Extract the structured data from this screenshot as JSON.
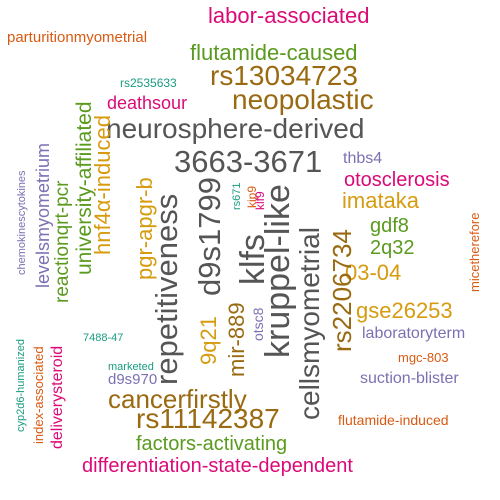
{
  "words": {
    "parturitionmyometrial": "parturitionmyometrial",
    "labor_associated": "labor-associated",
    "flutamide_caused": "flutamide-caused",
    "rs13034723": "rs13034723",
    "rs2535633": "rs2535633",
    "neopolastic": "neopolastic",
    "deathsour": "deathsour",
    "neurosphere_derived": "neurosphere-derived",
    "w3663_3671": "3663-3671",
    "thbs4": "thbs4",
    "otosclerosis": "otosclerosis",
    "imataka": "imataka",
    "gdf8": "gdf8",
    "w2q32": "2q32",
    "w03_04": "03-04",
    "gse26253": "gse26253",
    "w7488_47": "7488-47",
    "laboratoryterm": "laboratoryterm",
    "mgc_803": "mgc-803",
    "marketed": "marketed",
    "suction_blister": "suction-blister",
    "d9s970": "d9s970",
    "cancerfirstly": "cancerfirstly",
    "rs11142387": "rs11142387",
    "flutamide_induced": "flutamide-induced",
    "factors_activating": "factors-activating",
    "differentiation_state_dependent": "differentiation-state-dependent",
    "chemokinescytokines": "chemokinescytokines",
    "levelsmyometrium": "levelsmyometrium",
    "reactionqrt_pcr": "reactionqrt-pcr",
    "university_affiliated": "university-affiliated",
    "cyp2d6_humanized": "cyp2d6-humanized",
    "index_associated": "index-associated",
    "deliverysteroid": "deliverysteroid",
    "hnf4a_induced": "hnf4α-induced",
    "pgr_apgr_b": "pgr-apgr-b",
    "repetitiveness": "repetitiveness",
    "w9q21": "9q21",
    "d9s1799": "d9s1799",
    "mir_889": "mir-889",
    "klfs": "klfs",
    "rs671": "rs671",
    "otsc8": "otsc8",
    "kruppel_like": "kruppel-like",
    "kip9": "kip9",
    "klf9": "klf9",
    "cellsmyometrial": "cellsmyometrial",
    "rs2206734": "rs2206734",
    "micetherefore": "micetherefore"
  },
  "colors": {
    "gray": "#555555",
    "brown": "#9a6a12",
    "gold": "#d69b0f",
    "green": "#5a9a1e",
    "orange": "#d95a12",
    "pink": "#db0a78",
    "purple": "#7a71b2",
    "teal": "#1a9c80"
  }
}
